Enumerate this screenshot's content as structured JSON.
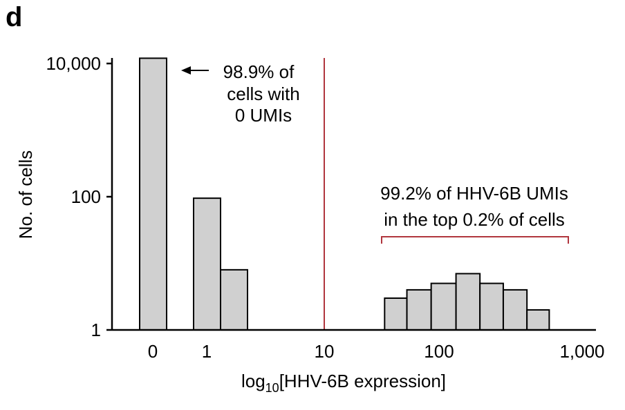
{
  "panel_label": "d",
  "chart_data": {
    "type": "bar",
    "title": "",
    "xlabel_prefix": "log",
    "xlabel_sub": "10",
    "xlabel_suffix": "[HHV-6B expression]",
    "ylabel": "No. of cells",
    "y_scale": "log",
    "ylim": [
      1,
      10000
    ],
    "y_ticks": [
      {
        "value": 1,
        "label": "1"
      },
      {
        "value": 100,
        "label": "100"
      },
      {
        "value": 10000,
        "label": "10,000"
      }
    ],
    "x_ticks": [
      {
        "value": 0,
        "label": "0"
      },
      {
        "value": 1,
        "label": "1"
      },
      {
        "value": 10,
        "label": "10"
      },
      {
        "value": 100,
        "label": "100"
      },
      {
        "value": 1000,
        "label": "1,000"
      }
    ],
    "threshold_x": 10,
    "bars": [
      {
        "x_start": 0,
        "x_end": 0.5,
        "value": 12000
      },
      {
        "x_start": 1,
        "x_end": 1.5,
        "value": 95
      },
      {
        "x_start": 1.5,
        "x_end": 2,
        "value": 8
      },
      {
        "x_start": 30,
        "x_end": 45,
        "value": 3
      },
      {
        "x_start": 45,
        "x_end": 70,
        "value": 4
      },
      {
        "x_start": 70,
        "x_end": 110,
        "value": 5
      },
      {
        "x_start": 110,
        "x_end": 170,
        "value": 7
      },
      {
        "x_start": 170,
        "x_end": 260,
        "value": 5
      },
      {
        "x_start": 260,
        "x_end": 400,
        "value": 4
      },
      {
        "x_start": 400,
        "x_end": 600,
        "value": 2
      }
    ],
    "annotations": {
      "zero_cells": [
        "98.9% of",
        "cells with",
        "0 UMIs"
      ],
      "top_cells": [
        "99.2% of HHV-6B UMIs",
        "in the top 0.2% of cells"
      ]
    },
    "colors": {
      "bar_fill": "#d0d0d0",
      "threshold": "#b0353d",
      "bracket": "#b0353d"
    }
  }
}
